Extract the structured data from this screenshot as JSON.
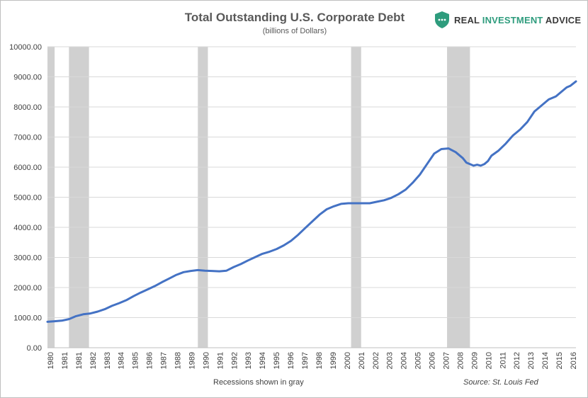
{
  "title": "Total Outstanding U.S. Corporate Debt",
  "subtitle": "(billions of Dollars)",
  "brand": {
    "logo_icon": "shield-chart-icon",
    "text_prefix": "REAL ",
    "text_accent": "INVESTMENT",
    "text_suffix": " ADVICE",
    "accent_color": "#2e9c7d"
  },
  "caption": "Recessions shown in gray",
  "source": "Source: St. Louis Fed",
  "colors": {
    "line": "#4472c4",
    "recession": "#d0d0d0",
    "grid": "#d9d9d9"
  },
  "chart_data": {
    "type": "line",
    "title": "Total Outstanding U.S. Corporate Debt",
    "subtitle": "(billions of Dollars)",
    "xlabel": "",
    "ylabel": "",
    "ylim": [
      0,
      10000
    ],
    "xlim": [
      1980.0,
      2016.9
    ],
    "y_ticks": [
      "0.00",
      "1000.00",
      "2000.00",
      "3000.00",
      "4000.00",
      "5000.00",
      "6000.00",
      "7000.00",
      "8000.00",
      "9000.00",
      "10000.00"
    ],
    "x_ticks": [
      "1980",
      "1981",
      "1981",
      "1982",
      "1983",
      "1984",
      "1985",
      "1986",
      "1987",
      "1988",
      "1989",
      "1990",
      "1991",
      "1992",
      "1993",
      "1994",
      "1995",
      "1996",
      "1997",
      "1998",
      "1999",
      "2000",
      "2001",
      "2002",
      "2003",
      "2004",
      "2005",
      "2006",
      "2007",
      "2008",
      "2009",
      "2010",
      "2011",
      "2012",
      "2013",
      "2014",
      "2015",
      "2016"
    ],
    "grid": true,
    "legend": "none",
    "recessions": [
      [
        1980.0,
        1980.5
      ],
      [
        1981.5,
        1982.9
      ],
      [
        1990.5,
        1991.2
      ],
      [
        2001.2,
        2001.9
      ],
      [
        2007.9,
        2009.5
      ]
    ],
    "series": [
      {
        "x": [
          1980.0,
          1980.5,
          1981.0,
          1981.5,
          1982.0,
          1982.5,
          1983.0,
          1983.5,
          1984.0,
          1984.5,
          1985.0,
          1985.5,
          1986.0,
          1986.5,
          1987.0,
          1987.5,
          1988.0,
          1988.5,
          1989.0,
          1989.5,
          1990.0,
          1990.5,
          1991.0,
          1991.5,
          1992.0,
          1992.5,
          1993.0,
          1993.5,
          1994.0,
          1994.5,
          1995.0,
          1995.5,
          1996.0,
          1996.5,
          1997.0,
          1997.5,
          1998.0,
          1998.5,
          1999.0,
          1999.5,
          2000.0,
          2000.5,
          2001.0,
          2001.5,
          2002.0,
          2002.5,
          2003.0,
          2003.5,
          2004.0,
          2004.5,
          2005.0,
          2005.5,
          2006.0,
          2006.5,
          2007.0,
          2007.5,
          2008.0,
          2008.5,
          2009.0,
          2009.25,
          2009.5,
          2009.75,
          2010.0,
          2010.25,
          2010.5,
          2010.75,
          2011.0,
          2011.5,
          2012.0,
          2012.5,
          2013.0,
          2013.5,
          2014.0,
          2014.5,
          2015.0,
          2015.5,
          2016.0,
          2016.25,
          2016.5,
          2016.9
        ],
        "values": [
          860,
          880,
          900,
          950,
          1050,
          1110,
          1140,
          1200,
          1280,
          1390,
          1480,
          1580,
          1710,
          1830,
          1940,
          2050,
          2180,
          2300,
          2420,
          2510,
          2550,
          2580,
          2560,
          2550,
          2540,
          2560,
          2680,
          2780,
          2900,
          3010,
          3120,
          3190,
          3280,
          3400,
          3550,
          3750,
          3980,
          4200,
          4420,
          4600,
          4700,
          4780,
          4800,
          4800,
          4800,
          4800,
          4850,
          4900,
          4980,
          5100,
          5250,
          5480,
          5750,
          6100,
          6450,
          6600,
          6620,
          6500,
          6300,
          6150,
          6100,
          6050,
          6080,
          6050,
          6100,
          6200,
          6380,
          6550,
          6780,
          7050,
          7250,
          7500,
          7850,
          8050,
          8250,
          8350,
          8550,
          8650,
          8700,
          8850
        ]
      }
    ]
  }
}
